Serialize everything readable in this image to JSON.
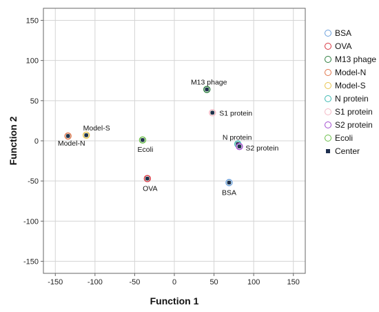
{
  "chart_data": {
    "type": "scatter",
    "title": "",
    "xlabel": "Function 1",
    "ylabel": "Function 2",
    "xlim": [
      -165,
      165
    ],
    "ylim": [
      -165,
      165
    ],
    "xticks": [
      -150,
      -100,
      -50,
      0,
      50,
      100,
      150
    ],
    "yticks": [
      -150,
      -100,
      -50,
      0,
      50,
      100,
      150
    ],
    "grid": true,
    "legend_position": "right",
    "groups": [
      {
        "name": "BSA",
        "color": "#6a9fdc",
        "label": "BSA",
        "x": 69,
        "y": -52
      },
      {
        "name": "OVA",
        "color": "#d7343f",
        "label": "OVA",
        "x": -34,
        "y": -47
      },
      {
        "name": "M13 phage",
        "color": "#2a7c3c",
        "label": "M13 phage",
        "x": 41,
        "y": 64
      },
      {
        "name": "Model-N",
        "color": "#e0744a",
        "label": "Model-N",
        "x": -134,
        "y": 6
      },
      {
        "name": "Model-S",
        "color": "#e8c34a",
        "label": "Model-S",
        "x": -111,
        "y": 7
      },
      {
        "name": "N protein",
        "color": "#3bb8b0",
        "label": "N protein",
        "x": 80,
        "y": -4
      },
      {
        "name": "S1 protein",
        "color": "#f4b8c4",
        "label": "S1 protein",
        "x": 48,
        "y": 35
      },
      {
        "name": "S2 protein",
        "color": "#a24bd0",
        "label": "S2 protein",
        "x": 82,
        "y": -7
      },
      {
        "name": "Ecoli",
        "color": "#67bd45",
        "label": "Ecoli",
        "x": -40,
        "y": 1
      }
    ],
    "center_marker": {
      "name": "Center",
      "color": "#1f2f4f"
    }
  }
}
